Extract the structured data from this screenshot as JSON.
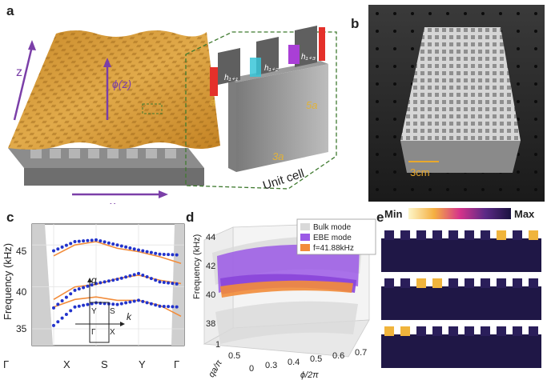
{
  "panels": {
    "a": {
      "label": "a",
      "z_axis": "z",
      "x_axis": "x",
      "phi_label": "ϕ(z)",
      "h1": "h₁₊₁",
      "h2": "h₁₊₂",
      "h3": "h₁₊₃",
      "a_label": "a",
      "height_label": "5a",
      "width_label": "3a",
      "unit_cell_label": "Unit cell",
      "colors": {
        "plate": "#d29a3a",
        "h1": "#e4302a",
        "h2": "#38c6d8",
        "h3": "#a93fd6"
      }
    },
    "b": {
      "label": "b",
      "scale_label": "3cm"
    },
    "c": {
      "label": "c",
      "ylabel": "Frequency (kHz)",
      "xticks": [
        "Γ",
        "X",
        "S",
        "Y",
        "Γ"
      ],
      "yticks": [
        "35",
        "40",
        "45"
      ],
      "inset": {
        "q": "q",
        "k": "k",
        "Y": "Y",
        "S": "S",
        "G": "Γ",
        "X": "X"
      }
    },
    "d": {
      "label": "d",
      "zlabel": "Frequency (kHz)",
      "xlabel": "ϕ/2π",
      "ylabel": "qa/π",
      "zticks": [
        "38",
        "40",
        "42",
        "44"
      ],
      "xticks": [
        "0.3",
        "0.4",
        "0.5",
        "0.6",
        "0.7"
      ],
      "yticks": [
        "1",
        "0.5",
        "0"
      ],
      "legend": [
        "Bulk mode",
        "EBE mode",
        "f=41.88kHz"
      ],
      "colors": {
        "bulk": "#d9d9d9",
        "ebe": "#9b59e6",
        "freq": "#f28c3a"
      }
    },
    "e": {
      "label": "e",
      "min": "Min",
      "max": "Max"
    }
  },
  "chart_data": {
    "type": "line",
    "title": "",
    "xlabel": "",
    "ylabel": "Frequency (kHz)",
    "categories": [
      "Γ",
      "X",
      "S",
      "Y",
      "Γ"
    ],
    "ylim": [
      33,
      47.5
    ],
    "x": [
      0.0,
      0.25,
      0.375,
      0.5,
      0.625,
      0.75,
      0.875,
      1.0
    ],
    "series": [
      {
        "values": [
          null,
          43.7,
          45.0,
          45.4,
          44.6,
          44.2,
          43.6,
          42.8
        ]
      },
      {
        "values": [
          null,
          38.5,
          40.0,
          40.3,
          41.0,
          41.4,
          40.8,
          40.4
        ]
      },
      {
        "values": [
          null,
          37.6,
          38.5,
          38.8,
          38.4,
          38.4,
          37.8,
          36.5
        ]
      },
      {
        "values": [
          null,
          44.3,
          45.4,
          45.6,
          45.0,
          44.4,
          43.9,
          43.8
        ]
      },
      {
        "values": [
          null,
          37.5,
          39.6,
          40.4,
          40.9,
          41.6,
          40.6,
          40.3
        ]
      },
      {
        "values": [
          null,
          35.4,
          37.6,
          38.1,
          37.9,
          38.4,
          37.7,
          37.6
        ]
      }
    ]
  }
}
